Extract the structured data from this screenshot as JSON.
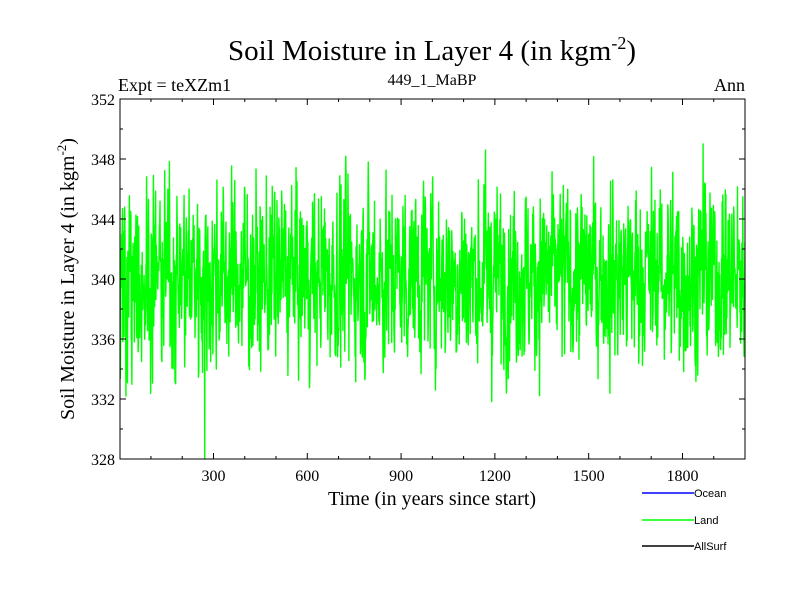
{
  "chart_data": {
    "type": "line",
    "title_main": "Soil Moisture in Layer 4 (in kgm",
    "title_sup": "-2",
    "title_close": ")",
    "left_label": "Expt = teXZm1",
    "center_label": "449_1_MaBP",
    "right_label": "Ann",
    "xlabel": "Time (in years since start)",
    "ylabel_main": "Soil Moisture in Layer 4 (in kgm",
    "ylabel_sup": "-2",
    "ylabel_close": ")",
    "xlim": [
      1,
      2000
    ],
    "ylim": [
      328,
      352
    ],
    "x_ticks": [
      300,
      600,
      900,
      1200,
      1500,
      1800
    ],
    "x_tick_labels": [
      "300",
      "600",
      "900",
      "1200",
      "1500",
      "1800"
    ],
    "y_ticks": [
      328,
      332,
      336,
      340,
      344,
      348,
      352
    ],
    "y_tick_labels": [
      "328",
      "332",
      "336",
      "340",
      "344",
      "348",
      "352"
    ],
    "series": [
      {
        "name": "Ocean",
        "color": "#0000ff",
        "values": []
      },
      {
        "name": "Land",
        "color": "#00ff00",
        "n_points": 2000,
        "mean": 340.3,
        "std": 3.0,
        "min": 327.9,
        "max": 349.0,
        "seed": 449
      },
      {
        "name": "AllSurf",
        "color": "#000000",
        "values": []
      }
    ],
    "legend": [
      "Ocean",
      "Land",
      "AllSurf"
    ]
  }
}
